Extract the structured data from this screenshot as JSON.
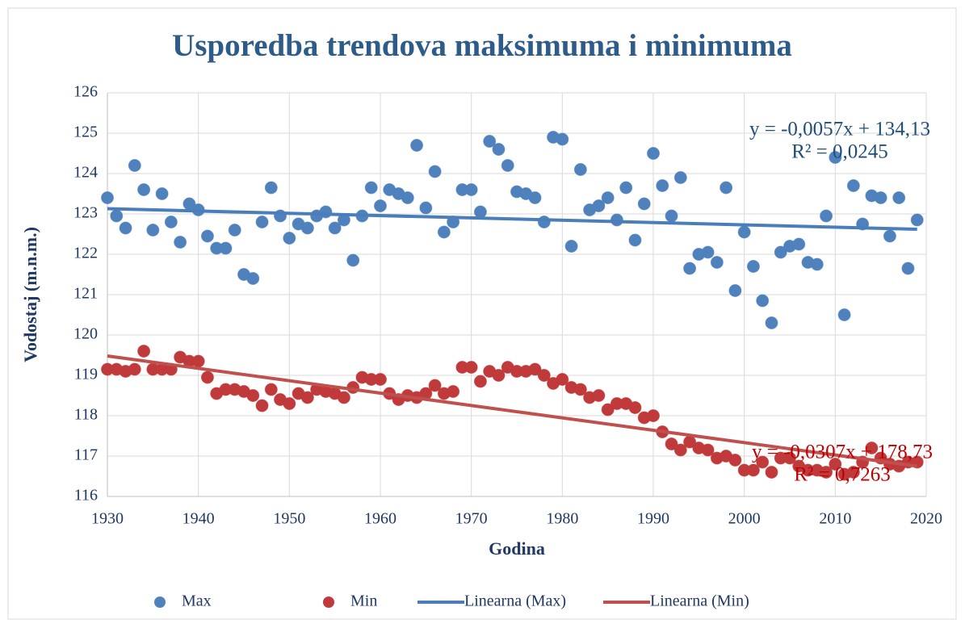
{
  "chart_data": {
    "type": "scatter",
    "title": "Usporedba trendova maksimuma i minimuma",
    "x_label": "Godina",
    "y_label": "Vodostaj (m.n.m.)",
    "xlim": [
      1930,
      2020
    ],
    "xticks": [
      1930,
      1940,
      1950,
      1960,
      1970,
      1980,
      1990,
      2000,
      2010,
      2020
    ],
    "ylim": [
      116,
      126
    ],
    "yticks": [
      116,
      117,
      118,
      119,
      120,
      121,
      122,
      123,
      124,
      125,
      126
    ],
    "grid": true,
    "legend": "bottom",
    "x": [
      1930,
      1931,
      1932,
      1933,
      1934,
      1935,
      1936,
      1937,
      1938,
      1939,
      1940,
      1941,
      1942,
      1943,
      1944,
      1945,
      1946,
      1947,
      1948,
      1949,
      1950,
      1951,
      1952,
      1953,
      1954,
      1955,
      1956,
      1957,
      1958,
      1959,
      1960,
      1961,
      1962,
      1963,
      1964,
      1965,
      1966,
      1967,
      1968,
      1969,
      1970,
      1971,
      1972,
      1973,
      1974,
      1975,
      1976,
      1977,
      1978,
      1979,
      1980,
      1981,
      1982,
      1983,
      1984,
      1985,
      1986,
      1987,
      1988,
      1989,
      1990,
      1991,
      1992,
      1993,
      1994,
      1995,
      1996,
      1997,
      1998,
      1999,
      2000,
      2001,
      2002,
      2003,
      2004,
      2005,
      2006,
      2007,
      2008,
      2009,
      2010,
      2011,
      2012,
      2013,
      2014,
      2015,
      2016,
      2017,
      2018,
      2019
    ],
    "series": [
      {
        "name": "Max",
        "type": "scatter",
        "color": "#4f81bd",
        "values": [
          123.4,
          122.95,
          122.65,
          124.2,
          123.6,
          122.6,
          123.5,
          122.8,
          122.3,
          123.25,
          123.1,
          122.45,
          122.15,
          122.15,
          122.6,
          121.5,
          121.4,
          122.8,
          123.65,
          122.95,
          122.4,
          122.75,
          122.65,
          122.95,
          123.05,
          122.65,
          122.85,
          121.85,
          122.95,
          123.65,
          123.2,
          123.6,
          123.5,
          123.4,
          124.7,
          123.15,
          124.05,
          122.55,
          122.8,
          123.6,
          123.6,
          123.05,
          124.8,
          124.6,
          124.2,
          123.55,
          123.5,
          123.4,
          122.8,
          124.9,
          124.85,
          122.2,
          124.1,
          123.1,
          123.2,
          123.4,
          122.85,
          123.65,
          122.35,
          123.25,
          124.5,
          123.7,
          122.95,
          123.9,
          121.65,
          122.0,
          122.05,
          121.8,
          123.65,
          121.1,
          122.55,
          121.7,
          120.85,
          120.3,
          122.05,
          122.2,
          122.25,
          121.8,
          121.75,
          122.95,
          124.4,
          120.5,
          123.7,
          122.75,
          123.45,
          123.4,
          122.45,
          123.4,
          121.65,
          122.85
        ]
      },
      {
        "name": "Min",
        "type": "scatter",
        "color": "#c0393b",
        "values": [
          119.15,
          119.15,
          119.1,
          119.15,
          119.6,
          119.15,
          119.15,
          119.15,
          119.45,
          119.35,
          119.35,
          118.95,
          118.55,
          118.65,
          118.65,
          118.6,
          118.5,
          118.25,
          118.65,
          118.4,
          118.3,
          118.55,
          118.45,
          118.65,
          118.6,
          118.55,
          118.45,
          118.7,
          118.95,
          118.9,
          118.9,
          118.55,
          118.4,
          118.5,
          118.45,
          118.55,
          118.75,
          118.55,
          118.6,
          119.2,
          119.2,
          118.85,
          119.1,
          119.0,
          119.2,
          119.1,
          119.1,
          119.15,
          119.0,
          118.8,
          118.9,
          118.7,
          118.65,
          118.45,
          118.5,
          118.15,
          118.3,
          118.3,
          118.2,
          117.95,
          118.0,
          117.6,
          117.3,
          117.15,
          117.35,
          117.2,
          117.15,
          116.95,
          117.0,
          116.9,
          116.65,
          116.65,
          116.85,
          116.6,
          116.95,
          116.95,
          116.75,
          116.65,
          116.65,
          116.6,
          116.8,
          116.55,
          116.6,
          116.85,
          117.2,
          116.95,
          116.8,
          116.75,
          116.85,
          116.85
        ]
      },
      {
        "name": "Linearna (Max)",
        "type": "line",
        "color": "#4a7ebb",
        "x": [
          1930,
          2019
        ],
        "values": [
          123.13,
          122.62
        ]
      },
      {
        "name": "Linearna (Min)",
        "type": "line",
        "color": "#c0504d",
        "x": [
          1930,
          2019
        ],
        "values": [
          119.48,
          116.75
        ]
      }
    ],
    "annotations": [
      {
        "lines": [
          "y = -0,0057x + 134,13",
          "R² = 0,0245"
        ],
        "color": "#1f4e79"
      },
      {
        "lines": [
          "y = -0,0307x + 178,73",
          "R² = 0,7263"
        ],
        "color": "#c00000"
      }
    ]
  }
}
